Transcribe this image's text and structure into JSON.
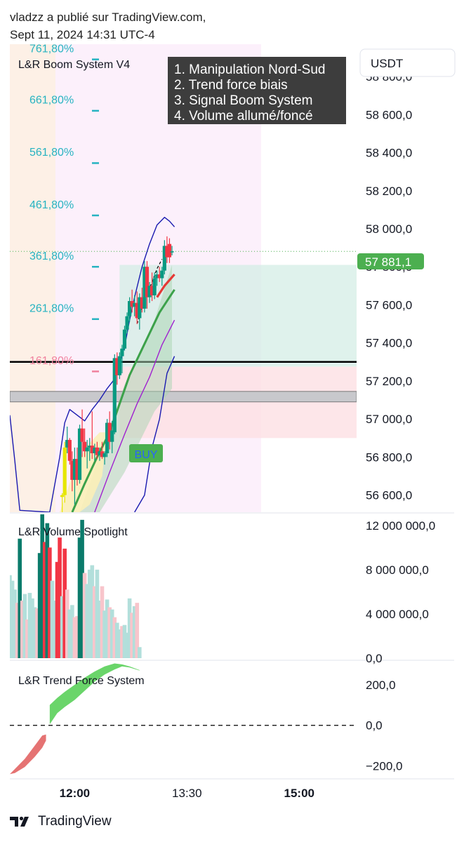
{
  "header": {
    "line1": "vladzz a publié sur TradingView.com,",
    "line2": "Sept 11, 2024 14:31 UTC-4"
  },
  "footer": {
    "brand": "TradingView",
    "logo_icon": "tradingview-logo-icon"
  },
  "panes": {
    "main_title": "L&R Boom System V4",
    "volume_title": "L&R Volume Spotlight",
    "trend_title": "L&R Trend Force System"
  },
  "currency": "USDT",
  "notes": [
    "1. Manipulation Nord-Sud",
    "2. Trend force biais",
    "3. Signal Boom System",
    "4. Volume allumé/foncé"
  ],
  "buy_label": "BUY",
  "last_price_label": "57 881,1",
  "colors": {
    "up": "#089981",
    "down": "#f23645",
    "yellow": "#e6e600",
    "fib": "#26b3c1",
    "fib_pink": "#f0829e",
    "label_bg": "#4caf50",
    "note_bg": "#3d3d3d"
  },
  "chart_data": [
    {
      "type": "candlestick",
      "title": "L&R Boom System V4",
      "y_ticks": [
        "58 800,0",
        "58 600,0",
        "58 400,0",
        "58 200,0",
        "58 000,0",
        "57 800,0",
        "57 600,0",
        "57 400,0",
        "57 200,0",
        "57 000,0",
        "56 800,0",
        "56 600,0"
      ],
      "y_tick_values": [
        58800,
        58600,
        58400,
        58200,
        58000,
        57800,
        57600,
        57400,
        57200,
        57000,
        56800,
        56600
      ],
      "ylim": [
        56510,
        58970
      ],
      "x_ticks": [
        "12:00",
        "13:30",
        "15:00"
      ],
      "x_tick_minutes": [
        720,
        810,
        900
      ],
      "xlim": [
        668,
        946
      ],
      "last_price": 57881.1,
      "fib_levels": [
        {
          "label": "761,80%",
          "price": 58950
        },
        {
          "label": "661,80%",
          "price": 58680
        },
        {
          "label": "561,80%",
          "price": 58405
        },
        {
          "label": "461,80%",
          "price": 58130
        },
        {
          "label": "361,80%",
          "price": 57860
        },
        {
          "label": "261,80%",
          "price": 57585
        },
        {
          "label": "161,80%",
          "price": 57310
        }
      ],
      "candles": [
        {
          "t": 710,
          "o": 56590,
          "h": 56610,
          "l": 56480,
          "c": 56600,
          "color": "yellow"
        },
        {
          "t": 712,
          "o": 56600,
          "h": 56880,
          "l": 56560,
          "c": 56850,
          "color": "yellow"
        },
        {
          "t": 714,
          "o": 56850,
          "h": 56960,
          "l": 56820,
          "c": 56890,
          "color": "up"
        },
        {
          "t": 716,
          "o": 56890,
          "h": 56900,
          "l": 56760,
          "c": 56780,
          "color": "down"
        },
        {
          "t": 718,
          "o": 56780,
          "h": 56830,
          "l": 56620,
          "c": 56680,
          "color": "down"
        },
        {
          "t": 720,
          "o": 56680,
          "h": 56850,
          "l": 56550,
          "c": 56790,
          "color": "up"
        },
        {
          "t": 722,
          "o": 56790,
          "h": 56850,
          "l": 56650,
          "c": 56680,
          "color": "down"
        },
        {
          "t": 724,
          "o": 56680,
          "h": 56970,
          "l": 56660,
          "c": 56950,
          "color": "up"
        },
        {
          "t": 726,
          "o": 56950,
          "h": 57050,
          "l": 56800,
          "c": 56880,
          "color": "down"
        },
        {
          "t": 728,
          "o": 56880,
          "h": 56950,
          "l": 56800,
          "c": 56830,
          "color": "down"
        },
        {
          "t": 730,
          "o": 56830,
          "h": 56890,
          "l": 56740,
          "c": 56850,
          "color": "up"
        },
        {
          "t": 732,
          "o": 56850,
          "h": 56900,
          "l": 56780,
          "c": 56860,
          "color": "up"
        },
        {
          "t": 734,
          "o": 56860,
          "h": 57040,
          "l": 56790,
          "c": 56820,
          "color": "down"
        },
        {
          "t": 736,
          "o": 56820,
          "h": 56870,
          "l": 56780,
          "c": 56850,
          "color": "up"
        },
        {
          "t": 738,
          "o": 56850,
          "h": 56880,
          "l": 56790,
          "c": 56810,
          "color": "down"
        },
        {
          "t": 740,
          "o": 56810,
          "h": 56850,
          "l": 56780,
          "c": 56830,
          "color": "up"
        },
        {
          "t": 742,
          "o": 56830,
          "h": 56880,
          "l": 56790,
          "c": 56800,
          "color": "down"
        },
        {
          "t": 744,
          "o": 56800,
          "h": 56830,
          "l": 56760,
          "c": 56820,
          "color": "up"
        },
        {
          "t": 746,
          "o": 56820,
          "h": 57000,
          "l": 56800,
          "c": 56980,
          "color": "up"
        },
        {
          "t": 748,
          "o": 56980,
          "h": 57040,
          "l": 56840,
          "c": 56880,
          "color": "down"
        },
        {
          "t": 750,
          "o": 56880,
          "h": 56990,
          "l": 56820,
          "c": 56940,
          "color": "up"
        },
        {
          "t": 752,
          "o": 56930,
          "h": 57340,
          "l": 56920,
          "c": 57320,
          "color": "up"
        },
        {
          "t": 754,
          "o": 57320,
          "h": 57350,
          "l": 57180,
          "c": 57230,
          "color": "down"
        },
        {
          "t": 756,
          "o": 57230,
          "h": 57350,
          "l": 57210,
          "c": 57330,
          "color": "up"
        },
        {
          "t": 758,
          "o": 57330,
          "h": 57390,
          "l": 57240,
          "c": 57370,
          "color": "up"
        },
        {
          "t": 760,
          "o": 57370,
          "h": 57490,
          "l": 57360,
          "c": 57470,
          "color": "up"
        },
        {
          "t": 762,
          "o": 57470,
          "h": 57560,
          "l": 57450,
          "c": 57540,
          "color": "up"
        },
        {
          "t": 764,
          "o": 57540,
          "h": 57640,
          "l": 57510,
          "c": 57620,
          "color": "up"
        },
        {
          "t": 766,
          "o": 57620,
          "h": 57680,
          "l": 57560,
          "c": 57590,
          "color": "down"
        },
        {
          "t": 768,
          "o": 57590,
          "h": 57650,
          "l": 57540,
          "c": 57610,
          "color": "up"
        },
        {
          "t": 770,
          "o": 57610,
          "h": 57670,
          "l": 57500,
          "c": 57530,
          "color": "down"
        },
        {
          "t": 772,
          "o": 57530,
          "h": 57660,
          "l": 57470,
          "c": 57640,
          "color": "up"
        },
        {
          "t": 774,
          "o": 57640,
          "h": 57690,
          "l": 57560,
          "c": 57580,
          "color": "down"
        },
        {
          "t": 776,
          "o": 57580,
          "h": 57830,
          "l": 57560,
          "c": 57800,
          "color": "up"
        },
        {
          "t": 778,
          "o": 57800,
          "h": 57830,
          "l": 57580,
          "c": 57640,
          "color": "down"
        },
        {
          "t": 780,
          "o": 57640,
          "h": 57720,
          "l": 57610,
          "c": 57700,
          "color": "up"
        },
        {
          "t": 782,
          "o": 57700,
          "h": 57770,
          "l": 57620,
          "c": 57650,
          "color": "down"
        },
        {
          "t": 784,
          "o": 57650,
          "h": 57770,
          "l": 57630,
          "c": 57740,
          "color": "up"
        },
        {
          "t": 786,
          "o": 57740,
          "h": 57780,
          "l": 57700,
          "c": 57760,
          "color": "up"
        },
        {
          "t": 788,
          "o": 57760,
          "h": 57800,
          "l": 57720,
          "c": 57740,
          "color": "down"
        },
        {
          "t": 790,
          "o": 57740,
          "h": 57800,
          "l": 57700,
          "c": 57780,
          "color": "up"
        },
        {
          "t": 792,
          "o": 57780,
          "h": 57940,
          "l": 57760,
          "c": 57910,
          "color": "up"
        },
        {
          "t": 794,
          "o": 57910,
          "h": 57960,
          "l": 57820,
          "c": 57850,
          "color": "down"
        },
        {
          "t": 796,
          "o": 57850,
          "h": 57950,
          "l": 57820,
          "c": 57920,
          "color": "down"
        },
        {
          "t": 798,
          "o": 57880,
          "h": 57910,
          "l": 57860,
          "c": 57881.1,
          "color": "up"
        }
      ]
    },
    {
      "type": "bar",
      "title": "L&R Volume Spotlight",
      "y_ticks": [
        "12 000 000,0",
        "8 000 000,0",
        "4 000 000,0",
        "0,0"
      ],
      "y_tick_values": [
        12000000,
        8000000,
        4000000,
        0
      ],
      "ylim": [
        0,
        13000000
      ],
      "bars": [
        {
          "t": 668,
          "v": 7500000,
          "k": "up_light"
        },
        {
          "t": 670,
          "v": 7000000,
          "k": "up_light"
        },
        {
          "t": 672,
          "v": 6200000,
          "k": "up_light"
        },
        {
          "t": 674,
          "v": 5000000,
          "k": "down_light"
        },
        {
          "t": 676,
          "v": 10800000,
          "k": "up_dark"
        },
        {
          "t": 678,
          "v": 5200000,
          "k": "down_light"
        },
        {
          "t": 680,
          "v": 5800000,
          "k": "up_light"
        },
        {
          "t": 682,
          "v": 3500000,
          "k": "down_light"
        },
        {
          "t": 684,
          "v": 5900000,
          "k": "up_light"
        },
        {
          "t": 686,
          "v": 5400000,
          "k": "up_light"
        },
        {
          "t": 688,
          "v": 4600000,
          "k": "up_light"
        },
        {
          "t": 690,
          "v": 4500000,
          "k": "down_light"
        },
        {
          "t": 692,
          "v": 9500000,
          "k": "up_dark"
        },
        {
          "t": 694,
          "v": 13000000,
          "k": "up_dark"
        },
        {
          "t": 696,
          "v": 10500000,
          "k": "down_dark"
        },
        {
          "t": 698,
          "v": 12200000,
          "k": "up_dark"
        },
        {
          "t": 700,
          "v": 10000000,
          "k": "down_dark"
        },
        {
          "t": 702,
          "v": 7000000,
          "k": "up_light"
        },
        {
          "t": 704,
          "v": 5200000,
          "k": "up_light"
        },
        {
          "t": 706,
          "v": 8700000,
          "k": "down_dark"
        },
        {
          "t": 708,
          "v": 10900000,
          "k": "down_dark"
        },
        {
          "t": 710,
          "v": 5600000,
          "k": "up_light"
        },
        {
          "t": 712,
          "v": 9900000,
          "k": "down_dark"
        },
        {
          "t": 714,
          "v": 6200000,
          "k": "down_light"
        },
        {
          "t": 716,
          "v": 4400000,
          "k": "up_light"
        },
        {
          "t": 718,
          "v": 4800000,
          "k": "up_light"
        },
        {
          "t": 720,
          "v": 3700000,
          "k": "down_light"
        },
        {
          "t": 722,
          "v": 3800000,
          "k": "down_light"
        },
        {
          "t": 724,
          "v": 10900000,
          "k": "up_dark"
        },
        {
          "t": 726,
          "v": 12500000,
          "k": "up_dark"
        },
        {
          "t": 728,
          "v": 7700000,
          "k": "down_light"
        },
        {
          "t": 730,
          "v": 6700000,
          "k": "up_light"
        },
        {
          "t": 732,
          "v": 8000000,
          "k": "up_light"
        },
        {
          "t": 734,
          "v": 8400000,
          "k": "up_light"
        },
        {
          "t": 736,
          "v": 6500000,
          "k": "down_light"
        },
        {
          "t": 738,
          "v": 8000000,
          "k": "up_light"
        },
        {
          "t": 740,
          "v": 5200000,
          "k": "up_light"
        },
        {
          "t": 742,
          "v": 6500000,
          "k": "down_light"
        },
        {
          "t": 744,
          "v": 4300000,
          "k": "up_light"
        },
        {
          "t": 746,
          "v": 5300000,
          "k": "up_light"
        },
        {
          "t": 748,
          "v": 4600000,
          "k": "down_light"
        },
        {
          "t": 750,
          "v": 4400000,
          "k": "up_light"
        },
        {
          "t": 752,
          "v": 3700000,
          "k": "down_light"
        },
        {
          "t": 754,
          "v": 3200000,
          "k": "up_light"
        },
        {
          "t": 756,
          "v": 2600000,
          "k": "up_light"
        },
        {
          "t": 758,
          "v": 2900000,
          "k": "down_light"
        },
        {
          "t": 760,
          "v": 3000000,
          "k": "up_light"
        },
        {
          "t": 762,
          "v": 2300000,
          "k": "up_light"
        },
        {
          "t": 764,
          "v": 5400000,
          "k": "up_light"
        },
        {
          "t": 766,
          "v": 4100000,
          "k": "down_light"
        },
        {
          "t": 768,
          "v": 4700000,
          "k": "up_light"
        },
        {
          "t": 770,
          "v": 5000000,
          "k": "down_light"
        },
        {
          "t": 772,
          "v": 1000000,
          "k": "up_light"
        }
      ]
    },
    {
      "type": "area",
      "title": "L&R Trend Force System",
      "y_ticks": [
        "200,0",
        "0,0",
        "−200,0"
      ],
      "y_tick_values": [
        200,
        0,
        -200
      ],
      "ylim": [
        -260,
        310
      ],
      "zero_line": 0,
      "negative": [
        {
          "t": 668,
          "lo": -240,
          "hi": -240
        },
        {
          "t": 672,
          "lo": -235,
          "hi": -215
        },
        {
          "t": 680,
          "lo": -205,
          "hi": -165
        },
        {
          "t": 688,
          "lo": -155,
          "hi": -100
        },
        {
          "t": 694,
          "lo": -110,
          "hi": -50
        },
        {
          "t": 697,
          "lo": -75,
          "hi": -45
        }
      ],
      "positive": [
        {
          "t": 700,
          "lo": 5,
          "hi": 100
        },
        {
          "t": 706,
          "lo": 60,
          "hi": 135
        },
        {
          "t": 712,
          "lo": 90,
          "hi": 165
        },
        {
          "t": 720,
          "lo": 125,
          "hi": 200
        },
        {
          "t": 728,
          "lo": 170,
          "hi": 235
        },
        {
          "t": 736,
          "lo": 215,
          "hi": 265
        },
        {
          "t": 744,
          "lo": 250,
          "hi": 290
        },
        {
          "t": 752,
          "lo": 275,
          "hi": 305
        },
        {
          "t": 758,
          "lo": 290,
          "hi": 300
        },
        {
          "t": 764,
          "lo": 285,
          "hi": 290
        },
        {
          "t": 772,
          "lo": 270,
          "hi": 272
        }
      ]
    }
  ]
}
